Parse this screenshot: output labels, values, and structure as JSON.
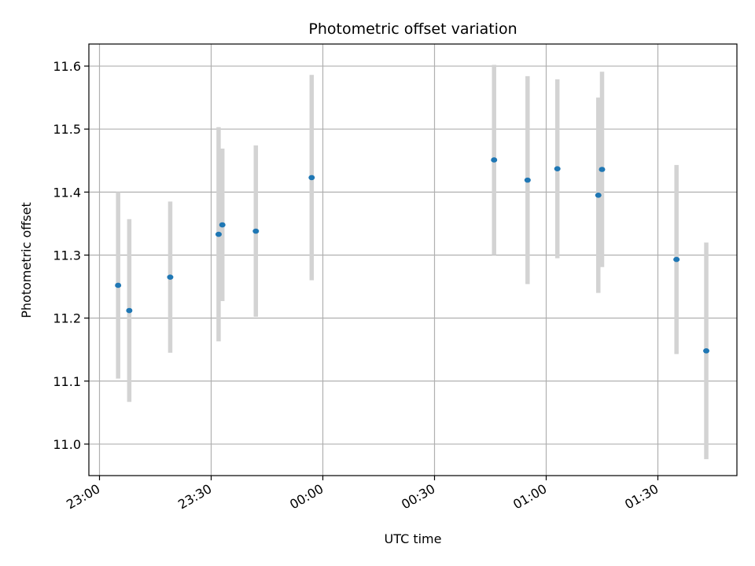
{
  "chart_data": {
    "type": "scatter",
    "title": "Photometric offset variation",
    "xlabel": "UTC time",
    "ylabel": "Photometric offset",
    "x_ticks": [
      "23:00",
      "23:30",
      "00:00",
      "00:30",
      "01:00",
      "01:30"
    ],
    "y_ticks": [
      "11.0",
      "11.1",
      "11.2",
      "11.3",
      "11.4",
      "11.5",
      "11.6"
    ],
    "ylim": [
      10.95,
      11.635
    ],
    "grid": true,
    "points": [
      {
        "time": "23:05",
        "y": 11.252,
        "err": 0.148
      },
      {
        "time": "23:08",
        "y": 11.212,
        "err": 0.145
      },
      {
        "time": "23:19",
        "y": 11.265,
        "err": 0.12
      },
      {
        "time": "23:32",
        "y": 11.333,
        "err": 0.17
      },
      {
        "time": "23:33",
        "y": 11.348,
        "err": 0.121
      },
      {
        "time": "23:42",
        "y": 11.338,
        "err": 0.136
      },
      {
        "time": "23:57",
        "y": 11.423,
        "err": 0.163
      },
      {
        "time": "00:46",
        "y": 11.451,
        "err": 0.151
      },
      {
        "time": "00:55",
        "y": 11.419,
        "err": 0.165
      },
      {
        "time": "01:03",
        "y": 11.437,
        "err": 0.142
      },
      {
        "time": "01:14",
        "y": 11.395,
        "err": 0.155
      },
      {
        "time": "01:15",
        "y": 11.436,
        "err": 0.155
      },
      {
        "time": "01:35",
        "y": 11.293,
        "err": 0.15
      },
      {
        "time": "01:43",
        "y": 11.148,
        "err": 0.172
      }
    ],
    "colors": {
      "marker": "#1f77b4",
      "errorbar": "#d3d3d3",
      "grid": "#b0b0b0"
    }
  }
}
